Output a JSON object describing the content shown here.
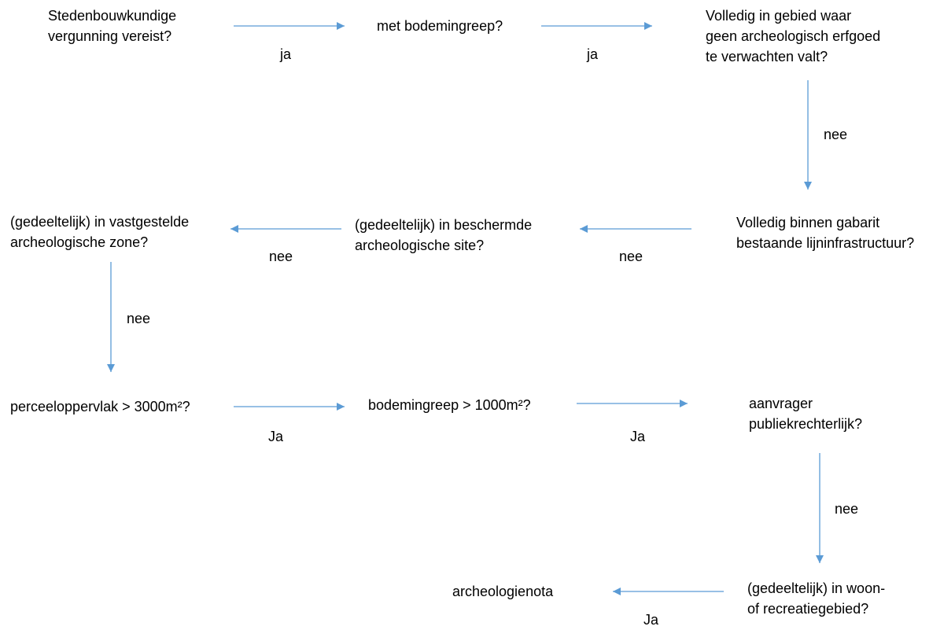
{
  "nodes": {
    "n1": "Stedenbouwkundige\nvergunning vereist?",
    "n2": "met bodemingreep?",
    "n3": "Volledig in gebied waar\ngeen archeologisch erfgoed\nte verwachten valt?",
    "n4": "Volledig binnen gabarit\nbestaande lijninfrastructuur?",
    "n5": "(gedeeltelijk) in beschermde\narcheologische site?",
    "n6": "(gedeeltelijk) in vastgestelde\narcheologische zone?",
    "n7": "perceeloppervlak > 3000m²?",
    "n8": "bodemingreep > 1000m²?",
    "n9": "aanvrager\npubliekrechterlijk?",
    "n10": "(gedeeltelijk) in woon-\nof recreatiegebied?",
    "n11": "archeologienota"
  },
  "edge_labels": {
    "e1": "ja",
    "e2": "ja",
    "e3": "nee",
    "e4": "nee",
    "e5": "nee",
    "e6": "nee",
    "e7": "Ja",
    "e8": "Ja",
    "e9": "nee",
    "e10": "Ja"
  },
  "colors": {
    "arrow": "#5b9bd5",
    "text": "#000000"
  }
}
